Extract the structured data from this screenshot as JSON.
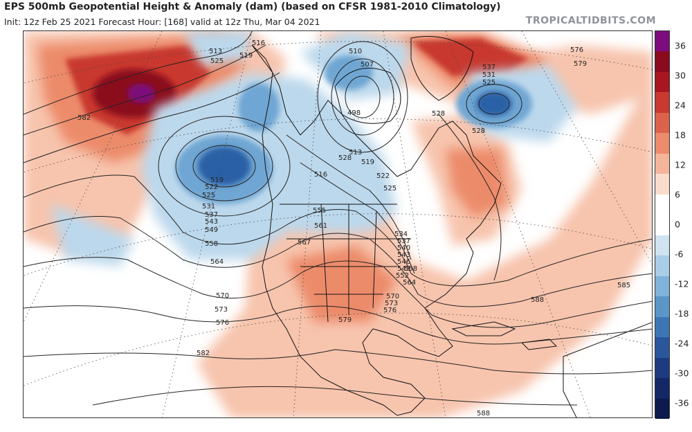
{
  "header": {
    "title": "EPS 500mb Geopotential Height & Anomaly (dam) (based on CFSR 1981-2010 Climatology)",
    "subtitle": "Init: 12z Feb 25 2021   Forecast Hour: [168]   valid at 12z Thu, Mar 04 2021",
    "brand": "TROPICALTIDBITS.COM"
  },
  "colorbar": {
    "ticks": [
      "36",
      "30",
      "24",
      "18",
      "12",
      "6",
      "0",
      "-6",
      "-12",
      "-18",
      "-24",
      "-30",
      "-36"
    ],
    "colors": [
      "#7d0d7d",
      "#8b0a1e",
      "#a9161f",
      "#c8392f",
      "#dc6249",
      "#ec8b6b",
      "#f5b59a",
      "#fadccd",
      "#ffffff",
      "#ffffff",
      "#cfe3f0",
      "#a8cde6",
      "#7fb3d9",
      "#5a96c8",
      "#3d76b4",
      "#2a579c",
      "#1d3b80",
      "#142766",
      "#0c1a4d"
    ]
  },
  "contour_labels": [
    "582",
    "513",
    "516",
    "519",
    "525",
    "510",
    "507",
    "498",
    "537",
    "531",
    "525",
    "528",
    "576",
    "579",
    "528",
    "519",
    "522",
    "525",
    "531",
    "537",
    "543",
    "549",
    "558",
    "564",
    "570",
    "573",
    "576",
    "582",
    "555",
    "561",
    "567",
    "534",
    "537",
    "540",
    "543",
    "546",
    "549",
    "552",
    "558",
    "564",
    "570",
    "573",
    "576",
    "579",
    "585",
    "588",
    "588",
    "516",
    "513",
    "519",
    "522",
    "525",
    "528"
  ],
  "colors": {
    "warm_light": "#f7c4ad",
    "warm_mid": "#ec8b6b",
    "warm_strong": "#c8392f",
    "warm_deep": "#8b0a1e",
    "purple": "#7d0d7d",
    "cool_light": "#bcd8ec",
    "cool_mid": "#6fa6d3",
    "cool_strong": "#2a60a6",
    "contour": "#222222"
  }
}
